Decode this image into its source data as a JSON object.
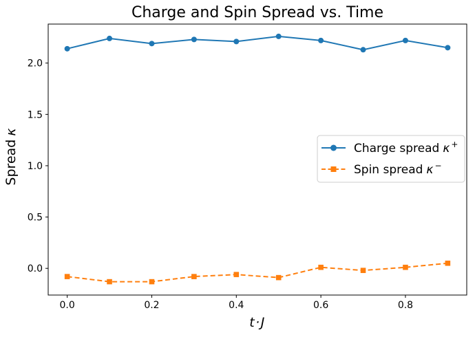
{
  "figure": {
    "background": "#ffffff",
    "spine_color": "#000000",
    "text_color": "#000000"
  },
  "chart_data": {
    "type": "line",
    "title": "Charge and Spin Spread vs. Time",
    "xlabel": "t·J",
    "ylabel": "Spread κ",
    "ylabel_text": "Spread",
    "ylabel_symbol": "κ",
    "x": [
      0.0,
      0.1,
      0.2,
      0.3,
      0.4,
      0.5,
      0.6,
      0.7,
      0.8,
      0.9
    ],
    "series": [
      {
        "name": "Charge spread κ⁺",
        "label_base": "Charge spread",
        "label_symbol": "κ",
        "label_sup": "+",
        "color": "#1f77b4",
        "marker": "circle",
        "linestyle": "solid",
        "values": [
          2.14,
          2.24,
          2.19,
          2.23,
          2.21,
          2.26,
          2.22,
          2.13,
          2.22,
          2.15
        ]
      },
      {
        "name": "Spin spread κ⁻",
        "label_base": "Spin spread",
        "label_symbol": "κ",
        "label_sup": "−",
        "color": "#ff7f0e",
        "marker": "square",
        "linestyle": "dashed",
        "values": [
          -0.08,
          -0.13,
          -0.13,
          -0.08,
          -0.06,
          -0.09,
          0.01,
          -0.02,
          0.01,
          0.05
        ]
      }
    ],
    "xticks": [
      0.0,
      0.2,
      0.4,
      0.6,
      0.8
    ],
    "xtick_labels": [
      "0.0",
      "0.2",
      "0.4",
      "0.6",
      "0.8"
    ],
    "yticks": [
      0.0,
      0.5,
      1.0,
      1.5,
      2.0
    ],
    "ytick_labels": [
      "0.0",
      "0.5",
      "1.0",
      "1.5",
      "2.0"
    ],
    "xlim": [
      -0.045,
      0.945
    ],
    "ylim": [
      -0.26,
      2.38
    ],
    "grid": false,
    "legend_position": "center right"
  }
}
